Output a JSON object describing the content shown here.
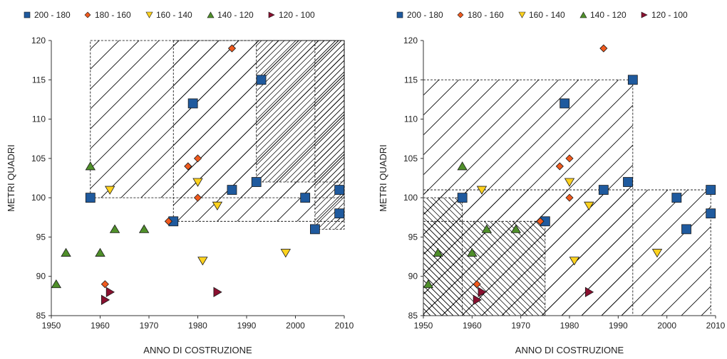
{
  "legend": [
    {
      "label": "200 - 180",
      "color": "#1f5a9e",
      "icon": "square-marker"
    },
    {
      "label": "180 - 160",
      "color": "#f05a1e",
      "icon": "diamond-marker"
    },
    {
      "label": "160 - 140",
      "color": "#ffd21e",
      "icon": "triangle-down-marker"
    },
    {
      "label": "140 - 120",
      "color": "#4f8f2a",
      "icon": "triangle-up-marker"
    },
    {
      "label": "120 - 100",
      "color": "#8a1030",
      "icon": "triangle-right-marker"
    }
  ],
  "chart_data": [
    {
      "type": "scatter",
      "title": "",
      "xlabel": "ANNO DI COSTRUZIONE",
      "ylabel": "METRI QUADRI",
      "xlim": [
        1950,
        2010
      ],
      "ylim": [
        85,
        120
      ],
      "xticks": [
        1950,
        1960,
        1970,
        1980,
        1990,
        2000,
        2010
      ],
      "yticks": [
        85,
        90,
        95,
        100,
        105,
        110,
        115,
        120
      ],
      "grid": false,
      "legend_position": "top",
      "series": [
        {
          "name": "200 - 180",
          "points": [
            [
              1958,
              100
            ],
            [
              1975,
              97
            ],
            [
              1979,
              112
            ],
            [
              1987,
              101
            ],
            [
              1992,
              102
            ],
            [
              1993,
              115
            ],
            [
              2002,
              100
            ],
            [
              2004,
              96
            ],
            [
              2009,
              101
            ],
            [
              2009,
              98
            ]
          ]
        },
        {
          "name": "180 - 160",
          "points": [
            [
              1961,
              89
            ],
            [
              1974,
              97
            ],
            [
              1978,
              104
            ],
            [
              1980,
              105
            ],
            [
              1980,
              100
            ],
            [
              1987,
              119
            ]
          ]
        },
        {
          "name": "160 - 140",
          "points": [
            [
              1962,
              101
            ],
            [
              1980,
              102
            ],
            [
              1981,
              92
            ],
            [
              1984,
              99
            ],
            [
              1998,
              93
            ]
          ]
        },
        {
          "name": "140 - 120",
          "points": [
            [
              1951,
              89
            ],
            [
              1953,
              93
            ],
            [
              1958,
              104
            ],
            [
              1960,
              93
            ],
            [
              1963,
              96
            ],
            [
              1969,
              96
            ]
          ]
        },
        {
          "name": "120 - 100",
          "points": [
            [
              1961,
              87
            ],
            [
              1962,
              88
            ],
            [
              1984,
              88
            ]
          ]
        }
      ],
      "hatched_regions": [
        {
          "x0": 1958,
          "x1": 2010,
          "y0": 100,
          "y1": 120,
          "pattern": "diagonal-wide"
        },
        {
          "x0": 1975,
          "x1": 2010,
          "y0": 97,
          "y1": 120,
          "pattern": "diagonal-wide"
        },
        {
          "x0": 1992,
          "x1": 2010,
          "y0": 102,
          "y1": 120,
          "pattern": "diagonal-dense"
        },
        {
          "x0": 2004,
          "x1": 2010,
          "y0": 96,
          "y1": 120,
          "pattern": "diagonal-dense"
        }
      ]
    },
    {
      "type": "scatter",
      "title": "",
      "xlabel": "ANNO DI COSTRUZIONE",
      "ylabel": "METRI QUADRI",
      "xlim": [
        1950,
        2010
      ],
      "ylim": [
        85,
        120
      ],
      "xticks": [
        1950,
        1960,
        1970,
        1980,
        1990,
        2000,
        2010
      ],
      "yticks": [
        85,
        90,
        95,
        100,
        105,
        110,
        115,
        120
      ],
      "grid": false,
      "legend_position": "top",
      "series": [
        {
          "name": "200 - 180",
          "points": [
            [
              1958,
              100
            ],
            [
              1975,
              97
            ],
            [
              1979,
              112
            ],
            [
              1987,
              101
            ],
            [
              1992,
              102
            ],
            [
              1993,
              115
            ],
            [
              2002,
              100
            ],
            [
              2004,
              96
            ],
            [
              2009,
              101
            ],
            [
              2009,
              98
            ]
          ]
        },
        {
          "name": "180 - 160",
          "points": [
            [
              1961,
              89
            ],
            [
              1974,
              97
            ],
            [
              1978,
              104
            ],
            [
              1980,
              105
            ],
            [
              1980,
              100
            ],
            [
              1987,
              119
            ]
          ]
        },
        {
          "name": "160 - 140",
          "points": [
            [
              1962,
              101
            ],
            [
              1980,
              102
            ],
            [
              1981,
              92
            ],
            [
              1984,
              99
            ],
            [
              1998,
              93
            ]
          ]
        },
        {
          "name": "140 - 120",
          "points": [
            [
              1951,
              89
            ],
            [
              1953,
              93
            ],
            [
              1958,
              104
            ],
            [
              1960,
              93
            ],
            [
              1963,
              96
            ],
            [
              1969,
              96
            ]
          ]
        },
        {
          "name": "120 - 100",
          "points": [
            [
              1961,
              87
            ],
            [
              1962,
              88
            ],
            [
              1984,
              88
            ]
          ]
        }
      ],
      "hatched_regions": [
        {
          "x0": 1950,
          "x1": 1993,
          "y0": 85,
          "y1": 115,
          "pattern": "diagonal-wide"
        },
        {
          "x0": 1950,
          "x1": 2009,
          "y0": 85,
          "y1": 101,
          "pattern": "diagonal-wide"
        },
        {
          "x0": 1950,
          "x1": 1958,
          "y0": 85,
          "y1": 100,
          "pattern": "backslash-dense"
        },
        {
          "x0": 1950,
          "x1": 1975,
          "y0": 85,
          "y1": 97,
          "pattern": "backslash-dense"
        }
      ]
    }
  ]
}
